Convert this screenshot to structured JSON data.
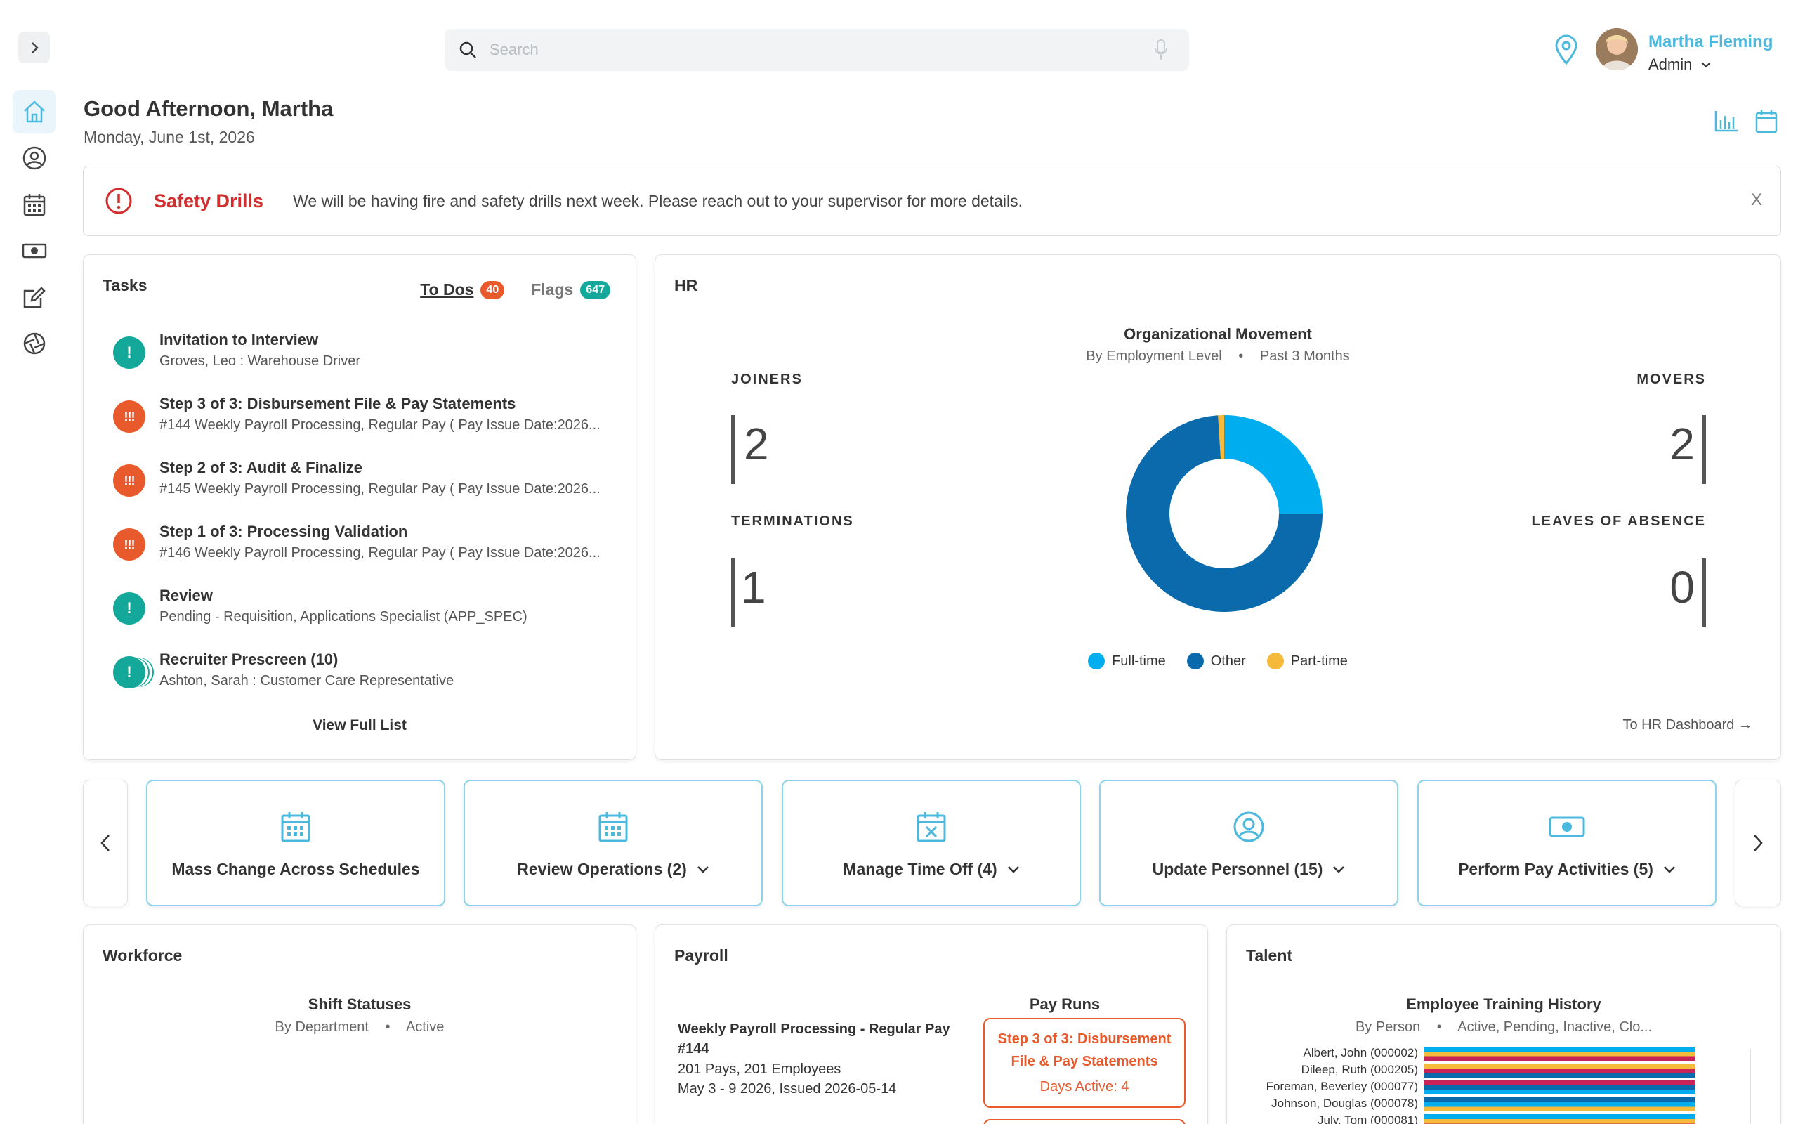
{
  "search": {
    "placeholder": "Search"
  },
  "user": {
    "name": "Martha Fleming",
    "role": "Admin"
  },
  "header": {
    "greeting": "Good Afternoon, Martha",
    "date": "Monday, June 1st, 2026"
  },
  "alert": {
    "title": "Safety Drills",
    "message": "We will be having fire and safety drills next week. Please reach out to your supervisor for more details.",
    "close": "X"
  },
  "tasks": {
    "title": "Tasks",
    "tabs": [
      {
        "label": "To Dos",
        "count": "40"
      },
      {
        "label": "Flags",
        "count": "647"
      }
    ],
    "items": [
      {
        "title": "Invitation to Interview",
        "sub": "Groves, Leo : Warehouse Driver",
        "badge": "!",
        "level": "teal"
      },
      {
        "title": "Step 3 of 3: Disbursement File & Pay Statements",
        "sub": "#144 Weekly Payroll Processing, Regular Pay ( Pay Issue Date:2026...",
        "badge": "!!!",
        "level": "orange"
      },
      {
        "title": "Step 2 of 3: Audit & Finalize",
        "sub": "#145 Weekly Payroll Processing, Regular Pay ( Pay Issue Date:2026...",
        "badge": "!!!",
        "level": "orange"
      },
      {
        "title": "Step 1 of 3: Processing Validation",
        "sub": "#146 Weekly Payroll Processing, Regular Pay ( Pay Issue Date:2026...",
        "badge": "!!!",
        "level": "orange"
      },
      {
        "title": "Review",
        "sub": "Pending - Requisition, Applications Specialist (APP_SPEC)",
        "badge": "!",
        "level": "teal"
      },
      {
        "title": "Recruiter Prescreen (10)",
        "sub": "Ashton, Sarah : Customer Care Representative",
        "badge": "!",
        "level": "teal"
      }
    ],
    "view_full": "View Full List"
  },
  "hr": {
    "title": "HR",
    "chart_title": "Organizational Movement",
    "chart_sub_left": "By Employment Level",
    "chart_sub_right": "Past 3 Months",
    "joiners_label": "JOINERS",
    "joiners": "2",
    "terminations_label": "TERMINATIONS",
    "terminations": "1",
    "movers_label": "MOVERS",
    "movers": "2",
    "leaves_label": "LEAVES OF ABSENCE",
    "leaves": "0",
    "link": "To HR Dashboard →"
  },
  "chart_data": {
    "type": "pie",
    "donut": true,
    "categories": [
      "Full-time",
      "Other",
      "Part-time"
    ],
    "values": [
      25,
      74,
      1
    ],
    "colors": [
      "#00aeef",
      "#0a6aab",
      "#f5b93b"
    ],
    "legend": "bottom"
  },
  "actions": [
    {
      "label": "Mass Change Across Schedules",
      "icon": "calendar-icon",
      "dropdown": false
    },
    {
      "label": "Review Operations (2)",
      "icon": "calendar-icon",
      "dropdown": true
    },
    {
      "label": "Manage Time Off (4)",
      "icon": "calendar-x-icon",
      "dropdown": true
    },
    {
      "label": "Update Personnel (15)",
      "icon": "user-circle-icon",
      "dropdown": true
    },
    {
      "label": "Perform Pay Activities (5)",
      "icon": "money-icon",
      "dropdown": true
    }
  ],
  "workforce": {
    "title": "Workforce",
    "chart_title": "Shift Statuses",
    "sub_left": "By Department",
    "sub_right": "Active"
  },
  "payroll": {
    "title": "Payroll",
    "chart_title": "Pay Runs",
    "run_title": "Weekly Payroll Processing - Regular Pay #144",
    "pays": "201 Pays, 201 Employees",
    "period": "May 3 - 9 2026, Issued 2026-05-14",
    "step": "Step 3 of 3: Disbursement File & Pay Statements",
    "days": "Days Active: 4"
  },
  "talent": {
    "title": "Talent",
    "chart_title": "Employee Training History",
    "sub_left": "By Person",
    "sub_right": "Active, Pending, Inactive, Clo...",
    "people": [
      "Albert, John (000002)",
      "Dileep, Ruth (000205)",
      "Foreman, Beverley (000077)",
      "Johnson, Douglas (000078)",
      "July, Tom (000081)"
    ]
  },
  "colors": {
    "accent": "#4bb8dd",
    "alert": "#d12f2f",
    "orange": "#e8592b",
    "teal": "#14a89a"
  }
}
